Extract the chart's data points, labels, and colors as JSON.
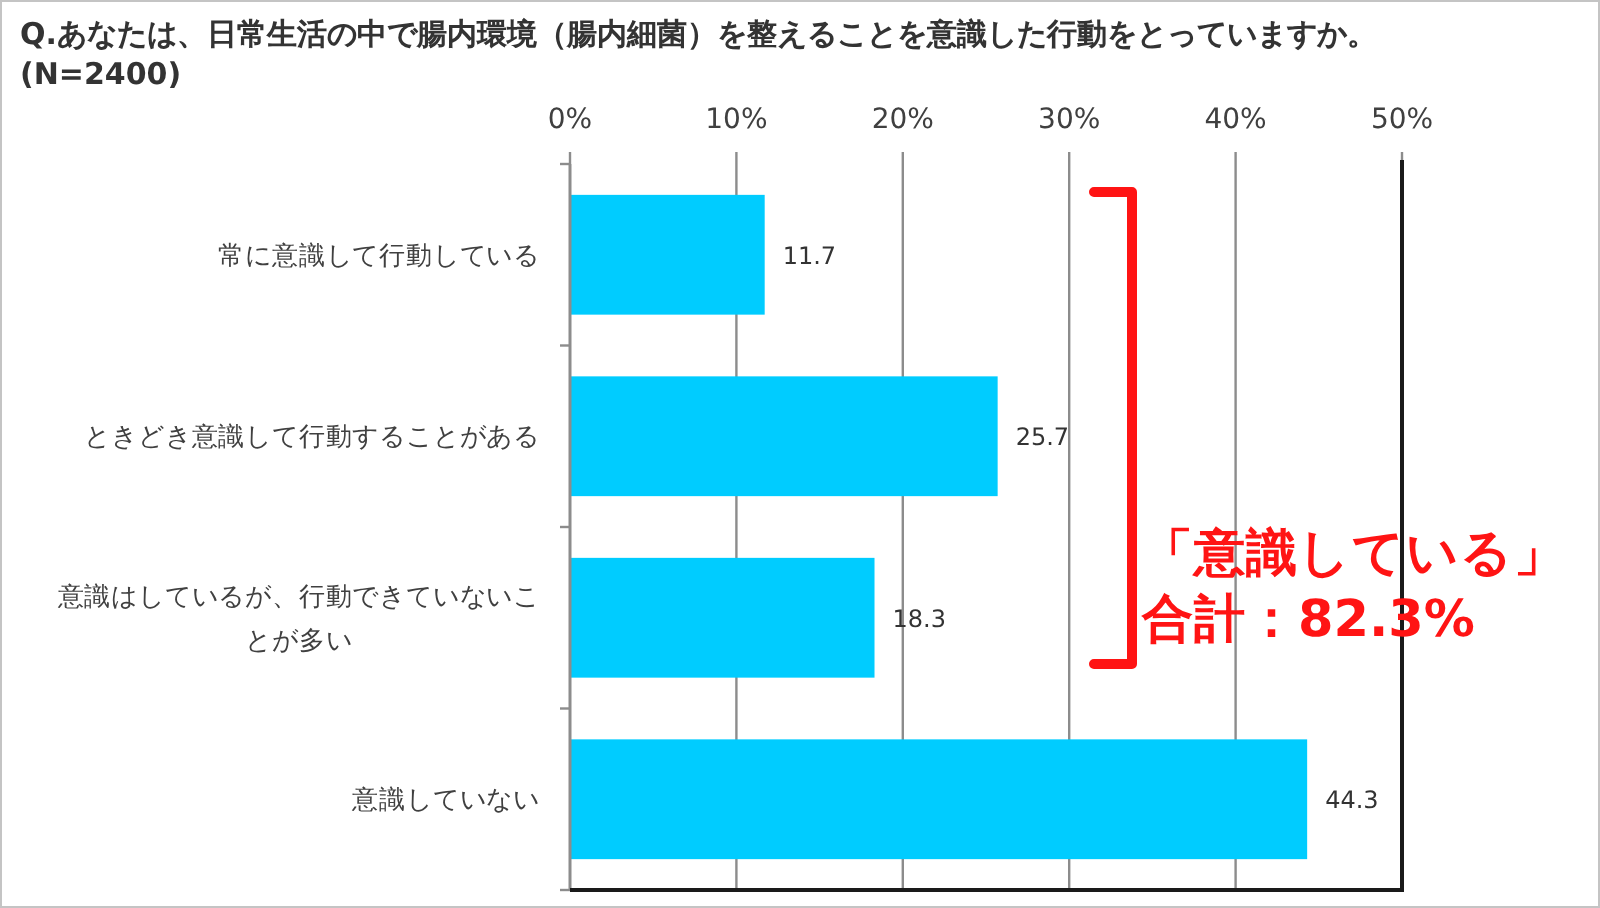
{
  "chart_data": {
    "type": "bar",
    "orientation": "horizontal",
    "title": "Q.あなたは、日常生活の中で腸内環境（腸内細菌）を整えることを意識した行動をとっていますか。",
    "subtitle": "(N=2400)",
    "categories": [
      "常に意識して行動している",
      "ときどき意識して行動することがある",
      "意識はしているが、行動できていないことが多い",
      "意識していない"
    ],
    "values": [
      11.7,
      25.7,
      18.3,
      44.3
    ],
    "color": "#00ccff",
    "data_labels": true,
    "xlim": [
      0,
      50
    ],
    "xticks": [
      {
        "value": 0,
        "label": "0%"
      },
      {
        "value": 10,
        "label": "10%"
      },
      {
        "value": 20,
        "label": "20%"
      },
      {
        "value": 30,
        "label": "30%"
      },
      {
        "value": 40,
        "label": "40%"
      },
      {
        "value": 50,
        "label": "50%"
      }
    ],
    "grid": "x",
    "annotations": [
      "「意識している」",
      "合計：82.3%"
    ]
  }
}
